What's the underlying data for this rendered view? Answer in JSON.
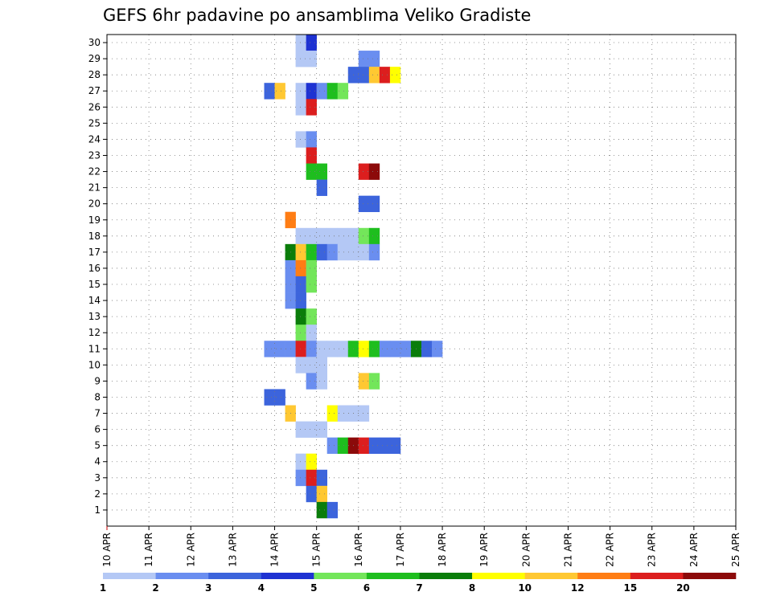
{
  "chart_data": {
    "type": "heatmap",
    "title": "GEFS 6hr padavine po ansamblima Veliko Gradiste",
    "xlabel": "",
    "ylabel": "",
    "x_tick_labels": [
      "10 APR",
      "11 APR",
      "12 APR",
      "13 APR",
      "14 APR",
      "15 APR",
      "16 APR",
      "17 APR",
      "18 APR",
      "19 APR",
      "20 APR",
      "21 APR",
      "22 APR",
      "23 APR",
      "24 APR",
      "25 APR"
    ],
    "y_tick_labels": [
      "1",
      "2",
      "3",
      "4",
      "5",
      "6",
      "7",
      "8",
      "9",
      "10",
      "11",
      "12",
      "13",
      "14",
      "15",
      "16",
      "17",
      "18",
      "19",
      "20",
      "21",
      "22",
      "23",
      "24",
      "25",
      "26",
      "27",
      "28",
      "29",
      "30"
    ],
    "x_range": [
      "10 APR 00UTC",
      "25 APR 00UTC"
    ],
    "y_range": [
      0,
      30
    ],
    "time_step_hours": 6,
    "grid": true,
    "colorbar": {
      "placement": "bottom",
      "labels": [
        "1",
        "2",
        "3",
        "4",
        "5",
        "6",
        "7",
        "8",
        "10",
        "12",
        "15",
        "20"
      ],
      "colors": [
        "#b4c8f5",
        "#6a8ef0",
        "#3c64dc",
        "#1e32d2",
        "#73e65a",
        "#1ebe1e",
        "#0a7d0a",
        "#ffff00",
        "#ffc832",
        "#ff7d14",
        "#dc1e1e",
        "#8c0a0a"
      ]
    },
    "cells": [
      {
        "m": 30,
        "h": [
          [
            78,
            1
          ],
          [
            79,
            4
          ]
        ]
      },
      {
        "m": 29,
        "h": [
          [
            78,
            1
          ],
          [
            79,
            1
          ],
          [
            84,
            2
          ],
          [
            85,
            2
          ]
        ]
      },
      {
        "m": 28,
        "h": [
          [
            83,
            3
          ],
          [
            84,
            3
          ],
          [
            85,
            9
          ],
          [
            86,
            11
          ],
          [
            87,
            8
          ]
        ]
      },
      {
        "m": 27,
        "h": [
          [
            75,
            3
          ],
          [
            76,
            9
          ],
          [
            78,
            1
          ],
          [
            79,
            4
          ],
          [
            80,
            2
          ],
          [
            81,
            6
          ],
          [
            82,
            5
          ]
        ]
      },
      {
        "m": 26,
        "h": [
          [
            78,
            1
          ],
          [
            79,
            11
          ]
        ]
      },
      {
        "m": 24,
        "h": [
          [
            78,
            1
          ],
          [
            79,
            2
          ]
        ]
      },
      {
        "m": 23,
        "h": [
          [
            79,
            11
          ]
        ]
      },
      {
        "m": 22,
        "h": [
          [
            79,
            6
          ],
          [
            80,
            6
          ],
          [
            84,
            11
          ],
          [
            85,
            12
          ]
        ]
      },
      {
        "m": 21,
        "h": [
          [
            80,
            3
          ]
        ]
      },
      {
        "m": 20,
        "h": [
          [
            84,
            3
          ],
          [
            85,
            3
          ]
        ]
      },
      {
        "m": 19,
        "h": [
          [
            77,
            10
          ]
        ]
      },
      {
        "m": 18,
        "h": [
          [
            78,
            1
          ],
          [
            79,
            1
          ],
          [
            80,
            1
          ],
          [
            81,
            1
          ],
          [
            82,
            1
          ],
          [
            83,
            1
          ],
          [
            84,
            5
          ],
          [
            85,
            6
          ]
        ]
      },
      {
        "m": 17,
        "h": [
          [
            77,
            7
          ],
          [
            78,
            9
          ],
          [
            79,
            6
          ],
          [
            80,
            3
          ],
          [
            81,
            2
          ],
          [
            82,
            1
          ],
          [
            83,
            1
          ],
          [
            84,
            1
          ],
          [
            85,
            2
          ]
        ]
      },
      {
        "m": 16,
        "h": [
          [
            77,
            2
          ],
          [
            78,
            10
          ],
          [
            79,
            5
          ]
        ]
      },
      {
        "m": 15,
        "h": [
          [
            77,
            2
          ],
          [
            78,
            3
          ],
          [
            79,
            5
          ]
        ]
      },
      {
        "m": 14,
        "h": [
          [
            77,
            2
          ],
          [
            78,
            3
          ]
        ]
      },
      {
        "m": 13,
        "h": [
          [
            78,
            7
          ],
          [
            79,
            5
          ]
        ]
      },
      {
        "m": 12,
        "h": [
          [
            78,
            5
          ],
          [
            79,
            1
          ]
        ]
      },
      {
        "m": 11,
        "h": [
          [
            75,
            2
          ],
          [
            76,
            2
          ],
          [
            77,
            2
          ],
          [
            78,
            11
          ],
          [
            79,
            2
          ],
          [
            80,
            1
          ],
          [
            81,
            1
          ],
          [
            82,
            1
          ],
          [
            83,
            6
          ],
          [
            84,
            8
          ],
          [
            85,
            6
          ],
          [
            86,
            2
          ],
          [
            87,
            2
          ],
          [
            88,
            2
          ],
          [
            89,
            7
          ],
          [
            90,
            3
          ],
          [
            91,
            2
          ]
        ]
      },
      {
        "m": 10,
        "h": [
          [
            78,
            1
          ],
          [
            79,
            1
          ],
          [
            80,
            1
          ]
        ]
      },
      {
        "m": 9,
        "h": [
          [
            79,
            2
          ],
          [
            80,
            1
          ],
          [
            84,
            9
          ],
          [
            85,
            5
          ]
        ]
      },
      {
        "m": 8,
        "h": [
          [
            75,
            3
          ],
          [
            76,
            3
          ]
        ]
      },
      {
        "m": 7,
        "h": [
          [
            77,
            9
          ],
          [
            81,
            8
          ],
          [
            82,
            1
          ],
          [
            83,
            1
          ],
          [
            84,
            1
          ]
        ]
      },
      {
        "m": 6,
        "h": [
          [
            78,
            1
          ],
          [
            79,
            1
          ],
          [
            80,
            1
          ]
        ]
      },
      {
        "m": 5,
        "h": [
          [
            81,
            2
          ],
          [
            82,
            6
          ],
          [
            83,
            12
          ],
          [
            84,
            11
          ],
          [
            85,
            3
          ],
          [
            86,
            3
          ],
          [
            87,
            3
          ]
        ]
      },
      {
        "m": 4,
        "h": [
          [
            78,
            1
          ],
          [
            79,
            8
          ]
        ]
      },
      {
        "m": 3,
        "h": [
          [
            78,
            2
          ],
          [
            79,
            11
          ],
          [
            80,
            3
          ]
        ]
      },
      {
        "m": 2,
        "h": [
          [
            79,
            3
          ],
          [
            80,
            9
          ]
        ]
      },
      {
        "m": 1,
        "h": [
          [
            80,
            7
          ],
          [
            81,
            3
          ]
        ]
      }
    ]
  }
}
